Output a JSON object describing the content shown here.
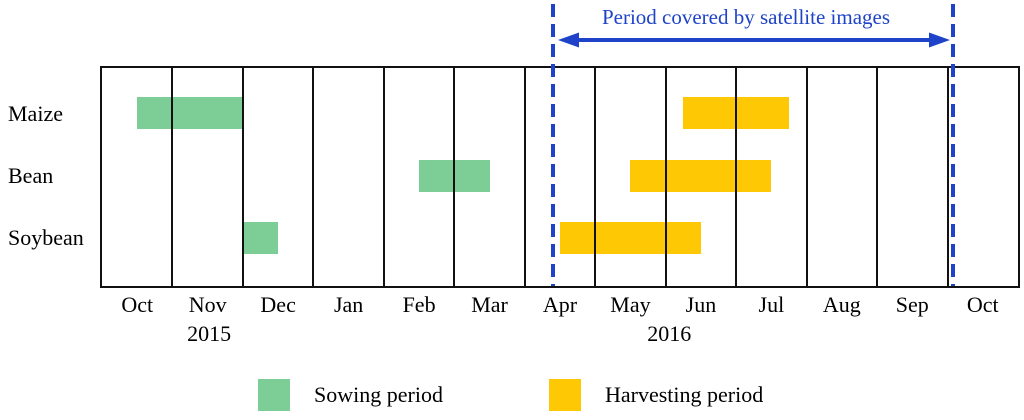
{
  "figure": {
    "annotation": {
      "label": "Period covered by satellite images",
      "color": "#1E43C8"
    },
    "legend": [
      {
        "key": "sowing",
        "label": "Sowing period",
        "color": "#7CCD96"
      },
      {
        "key": "harvesting",
        "label": "Harvesting period",
        "color": "#FFC805"
      }
    ]
  },
  "chart_data": {
    "type": "bar",
    "subtype": "gantt_crop_calendar",
    "title": "",
    "x_unit": "months since 1 Oct 2015",
    "xlim": [
      0,
      13
    ],
    "grid": "vertical month gridlines",
    "legend_position": "bottom",
    "months": [
      "Oct",
      "Nov",
      "Dec",
      "Jan",
      "Feb",
      "Mar",
      "Apr",
      "May",
      "Jun",
      "Jul",
      "Aug",
      "Sep",
      "Oct"
    ],
    "years": [
      {
        "label": "2015",
        "month_index": 1.52
      },
      {
        "label": "2016",
        "month_index": 8.05
      }
    ],
    "rows": [
      {
        "label": "Maize",
        "sowing": [
          0.5,
          2.0
        ],
        "harvesting": [
          8.25,
          9.75
        ]
      },
      {
        "label": "Bean",
        "sowing": [
          4.5,
          5.5
        ],
        "harvesting": [
          7.5,
          9.5
        ]
      },
      {
        "label": "Soybean",
        "sowing": [
          2.0,
          2.5
        ],
        "harvesting": [
          6.5,
          8.5
        ]
      }
    ],
    "satellite_period": {
      "start": 6.4,
      "end": 12.08
    }
  }
}
